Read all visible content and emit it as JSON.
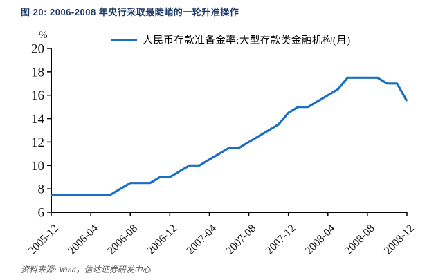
{
  "title": "图 20: 2006-2008 年央行采取最陡峭的一轮升准操作",
  "source": "资料来源: Wind，信达证券研发中心",
  "colors": {
    "title": "#1F3A68",
    "line": "#1A6FC4",
    "axis": "#000000",
    "source_text": "#595959"
  },
  "chart_data": {
    "type": "line",
    "legend": "人民币存款准备金率:大型存款类金融机构(月)",
    "unit": "%",
    "ylabel": "%",
    "xlabel": "",
    "ylim": [
      6,
      20
    ],
    "ytick_step": 2,
    "xtick_every": 4,
    "grid": false,
    "legend_position": "top-center",
    "line_color": "#1A6FC4",
    "x": [
      "2005-12",
      "2006-01",
      "2006-02",
      "2006-03",
      "2006-04",
      "2006-05",
      "2006-06",
      "2006-07",
      "2006-08",
      "2006-09",
      "2006-10",
      "2006-11",
      "2006-12",
      "2007-01",
      "2007-02",
      "2007-03",
      "2007-04",
      "2007-05",
      "2007-06",
      "2007-07",
      "2007-08",
      "2007-09",
      "2007-10",
      "2007-11",
      "2007-12",
      "2008-01",
      "2008-02",
      "2008-03",
      "2008-04",
      "2008-05",
      "2008-06",
      "2008-07",
      "2008-08",
      "2008-09",
      "2008-10",
      "2008-11",
      "2008-12"
    ],
    "values": [
      7.5,
      7.5,
      7.5,
      7.5,
      7.5,
      7.5,
      7.5,
      8.0,
      8.5,
      8.5,
      8.5,
      9.0,
      9.0,
      9.5,
      10.0,
      10.0,
      10.5,
      11.0,
      11.5,
      11.5,
      12.0,
      12.5,
      13.0,
      13.5,
      14.5,
      15.0,
      15.0,
      15.5,
      16.0,
      16.5,
      17.5,
      17.5,
      17.5,
      17.5,
      17.0,
      17.0,
      15.5
    ],
    "x_tick_labels": [
      "2005-12",
      "2006-04",
      "2006-08",
      "2006-12",
      "2007-04",
      "2007-08",
      "2007-12",
      "2008-04",
      "2008-08",
      "2008-12"
    ]
  }
}
